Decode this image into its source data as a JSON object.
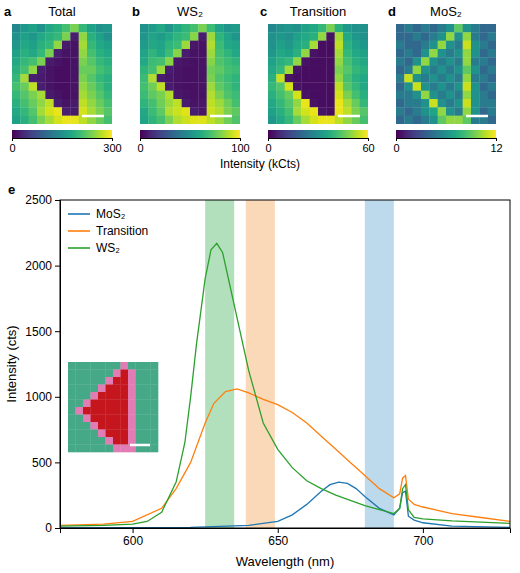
{
  "chart_data": [
    {
      "type": "heatmap",
      "panel": "a",
      "title": "Total",
      "colorbar": {
        "range": [
          0,
          300
        ],
        "ticks": [
          0,
          300
        ]
      },
      "cells": [
        [
          140,
          160,
          170,
          150,
          180,
          190,
          210,
          240,
          200,
          170,
          150,
          160
        ],
        [
          150,
          170,
          160,
          180,
          190,
          200,
          240,
          25,
          250,
          190,
          170,
          150
        ],
        [
          160,
          180,
          170,
          190,
          200,
          250,
          20,
          15,
          260,
          200,
          180,
          170
        ],
        [
          170,
          190,
          180,
          200,
          240,
          25,
          15,
          15,
          250,
          210,
          190,
          180
        ],
        [
          180,
          200,
          210,
          240,
          20,
          15,
          10,
          15,
          240,
          220,
          200,
          190
        ],
        [
          190,
          210,
          250,
          25,
          15,
          10,
          10,
          15,
          230,
          230,
          210,
          200
        ],
        [
          200,
          260,
          25,
          20,
          15,
          10,
          10,
          15,
          240,
          220,
          200,
          190
        ],
        [
          210,
          230,
          270,
          25,
          15,
          10,
          10,
          15,
          250,
          230,
          210,
          190
        ],
        [
          200,
          220,
          240,
          260,
          20,
          15,
          10,
          15,
          260,
          240,
          220,
          200
        ],
        [
          190,
          210,
          230,
          250,
          270,
          25,
          15,
          20,
          270,
          250,
          230,
          210
        ],
        [
          180,
          200,
          220,
          260,
          280,
          290,
          25,
          20,
          280,
          260,
          240,
          220
        ],
        [
          170,
          190,
          210,
          240,
          260,
          280,
          290,
          290,
          270,
          250,
          230,
          210
        ]
      ]
    },
    {
      "type": "heatmap",
      "panel": "b",
      "title": "WS₂",
      "colorbar": {
        "range": [
          0,
          100
        ],
        "ticks": [
          0,
          100
        ]
      },
      "cells": [
        [
          50,
          55,
          60,
          52,
          60,
          65,
          70,
          80,
          68,
          58,
          52,
          55
        ],
        [
          52,
          58,
          55,
          60,
          65,
          68,
          82,
          8,
          85,
          65,
          58,
          52
        ],
        [
          55,
          60,
          58,
          65,
          68,
          85,
          6,
          5,
          88,
          68,
          60,
          58
        ],
        [
          58,
          65,
          60,
          68,
          82,
          8,
          5,
          5,
          85,
          70,
          65,
          60
        ],
        [
          60,
          68,
          70,
          82,
          6,
          5,
          4,
          5,
          82,
          72,
          68,
          65
        ],
        [
          65,
          70,
          85,
          8,
          5,
          4,
          4,
          5,
          78,
          75,
          70,
          68
        ],
        [
          68,
          88,
          8,
          6,
          5,
          4,
          4,
          5,
          80,
          72,
          68,
          65
        ],
        [
          70,
          78,
          90,
          8,
          5,
          4,
          4,
          5,
          85,
          75,
          70,
          65
        ],
        [
          68,
          75,
          80,
          88,
          6,
          5,
          4,
          5,
          88,
          80,
          72,
          68
        ],
        [
          65,
          70,
          78,
          85,
          90,
          8,
          5,
          6,
          90,
          85,
          78,
          70
        ],
        [
          60,
          68,
          75,
          88,
          92,
          95,
          8,
          6,
          92,
          88,
          80,
          75
        ],
        [
          58,
          65,
          70,
          80,
          88,
          92,
          95,
          95,
          90,
          85,
          78,
          72
        ]
      ]
    },
    {
      "type": "heatmap",
      "panel": "c",
      "title": "Transition",
      "colorbar": {
        "range": [
          0,
          60
        ],
        "ticks": [
          0,
          60
        ]
      },
      "cells": [
        [
          28,
          30,
          32,
          30,
          34,
          36,
          40,
          48,
          38,
          32,
          30,
          30
        ],
        [
          30,
          32,
          30,
          34,
          36,
          38,
          50,
          3,
          52,
          36,
          32,
          30
        ],
        [
          30,
          34,
          32,
          36,
          38,
          52,
          2,
          2,
          54,
          38,
          34,
          32
        ],
        [
          32,
          36,
          34,
          38,
          50,
          3,
          2,
          2,
          52,
          40,
          36,
          34
        ],
        [
          34,
          38,
          40,
          50,
          3,
          2,
          2,
          2,
          50,
          42,
          38,
          36
        ],
        [
          36,
          40,
          52,
          3,
          2,
          2,
          2,
          2,
          48,
          44,
          40,
          38
        ],
        [
          38,
          55,
          3,
          2,
          2,
          2,
          2,
          2,
          50,
          42,
          38,
          36
        ],
        [
          40,
          44,
          56,
          3,
          2,
          2,
          2,
          2,
          54,
          44,
          40,
          36
        ],
        [
          38,
          42,
          46,
          56,
          3,
          2,
          2,
          2,
          56,
          48,
          42,
          38
        ],
        [
          36,
          40,
          44,
          50,
          58,
          3,
          2,
          2,
          58,
          52,
          46,
          40
        ],
        [
          34,
          38,
          42,
          52,
          56,
          58,
          3,
          2,
          58,
          54,
          48,
          44
        ],
        [
          32,
          36,
          40,
          46,
          52,
          56,
          58,
          58,
          54,
          50,
          46,
          42
        ]
      ]
    },
    {
      "type": "heatmap",
      "panel": "d",
      "title": "MoS₂",
      "colorbar": {
        "range": [
          0,
          12
        ],
        "ticks": [
          0,
          12
        ]
      },
      "cells": [
        [
          4,
          5,
          4,
          5,
          4,
          5,
          6,
          9,
          6,
          5,
          4,
          4
        ],
        [
          4,
          4,
          5,
          4,
          5,
          6,
          10,
          6,
          10,
          5,
          4,
          5
        ],
        [
          5,
          4,
          4,
          5,
          6,
          10,
          6,
          5,
          11,
          6,
          5,
          4
        ],
        [
          4,
          5,
          4,
          6,
          10,
          6,
          5,
          6,
          10,
          6,
          4,
          5
        ],
        [
          5,
          4,
          6,
          10,
          6,
          5,
          6,
          5,
          10,
          5,
          5,
          4
        ],
        [
          4,
          5,
          10,
          6,
          5,
          6,
          5,
          6,
          9,
          6,
          4,
          5
        ],
        [
          5,
          11,
          6,
          5,
          6,
          5,
          6,
          5,
          10,
          5,
          5,
          4
        ],
        [
          4,
          6,
          11,
          6,
          5,
          6,
          5,
          6,
          11,
          6,
          4,
          5
        ],
        [
          5,
          5,
          6,
          10,
          6,
          5,
          6,
          5,
          10,
          6,
          5,
          4
        ],
        [
          4,
          5,
          5,
          6,
          11,
          6,
          5,
          6,
          11,
          6,
          5,
          5
        ],
        [
          5,
          4,
          5,
          6,
          7,
          10,
          6,
          5,
          10,
          6,
          4,
          5
        ],
        [
          4,
          5,
          4,
          5,
          6,
          9,
          10,
          10,
          9,
          5,
          5,
          4
        ]
      ]
    },
    {
      "type": "line",
      "panel": "e",
      "xlabel": "Wavelength (nm)",
      "ylabel": "Intensity (cts)",
      "xlim": [
        575,
        730
      ],
      "ylim": [
        0,
        2500
      ],
      "xticks": [
        600,
        650,
        700
      ],
      "yticks": [
        0,
        500,
        1000,
        1500,
        2000,
        2500
      ],
      "legend": "upper left",
      "series": [
        {
          "name": "MoS₂",
          "color": "#1f77b4",
          "x": [
            575,
            620,
            640,
            650,
            655,
            660,
            665,
            668,
            671,
            674,
            677,
            680,
            685,
            690,
            692,
            693,
            694,
            695,
            697,
            700,
            710,
            730
          ],
          "values": [
            0,
            5,
            20,
            50,
            100,
            180,
            280,
            330,
            350,
            340,
            300,
            240,
            150,
            100,
            150,
            270,
            280,
            90,
            60,
            40,
            15,
            5
          ]
        },
        {
          "name": "Transition",
          "color": "#ff7f0e",
          "x": [
            575,
            590,
            600,
            610,
            615,
            620,
            625,
            628,
            632,
            636,
            640,
            645,
            650,
            655,
            660,
            665,
            670,
            675,
            680,
            685,
            690,
            692,
            693,
            694,
            695,
            697,
            700,
            710,
            720,
            730
          ],
          "values": [
            20,
            30,
            50,
            150,
            300,
            500,
            800,
            950,
            1040,
            1060,
            1030,
            980,
            940,
            880,
            800,
            700,
            600,
            500,
            400,
            300,
            230,
            260,
            380,
            400,
            220,
            180,
            160,
            110,
            80,
            50
          ]
        },
        {
          "name": "WS₂",
          "color": "#2ca02c",
          "x": [
            575,
            590,
            600,
            605,
            610,
            615,
            618,
            620,
            622,
            625,
            627,
            629,
            631,
            633,
            635,
            638,
            640,
            645,
            650,
            655,
            660,
            665,
            670,
            675,
            680,
            685,
            690,
            692,
            693,
            694,
            695,
            697,
            700,
            710,
            720,
            730
          ],
          "values": [
            15,
            20,
            30,
            50,
            120,
            350,
            650,
            1000,
            1400,
            1900,
            2120,
            2170,
            2100,
            1900,
            1700,
            1400,
            1200,
            800,
            600,
            460,
            360,
            300,
            250,
            210,
            170,
            140,
            110,
            150,
            300,
            330,
            140,
            80,
            70,
            55,
            45,
            35
          ]
        }
      ],
      "bands": [
        {
          "range": [
            625,
            635
          ],
          "color": "#a6dbb0"
        },
        {
          "range": [
            639,
            649
          ],
          "color": "#f9d2ad"
        },
        {
          "range": [
            680,
            690
          ],
          "color": "#b0d4e8"
        }
      ],
      "inset": {
        "colors": [
          "#45a987",
          "#e27cb4",
          "#c4161c"
        ],
        "cells": [
          [
            0,
            0,
            0,
            0,
            0,
            0,
            0,
            1,
            0,
            0,
            0,
            0
          ],
          [
            0,
            0,
            0,
            0,
            0,
            0,
            1,
            2,
            1,
            0,
            0,
            0
          ],
          [
            0,
            0,
            0,
            0,
            0,
            1,
            2,
            2,
            1,
            0,
            0,
            0
          ],
          [
            0,
            0,
            0,
            0,
            1,
            2,
            2,
            2,
            1,
            0,
            0,
            0
          ],
          [
            0,
            0,
            0,
            1,
            2,
            2,
            2,
            2,
            1,
            0,
            0,
            0
          ],
          [
            0,
            0,
            1,
            2,
            2,
            2,
            2,
            2,
            1,
            0,
            0,
            0
          ],
          [
            0,
            1,
            2,
            2,
            2,
            2,
            2,
            2,
            1,
            0,
            0,
            0
          ],
          [
            0,
            0,
            1,
            2,
            2,
            2,
            2,
            2,
            1,
            0,
            0,
            0
          ],
          [
            0,
            0,
            0,
            1,
            2,
            2,
            2,
            2,
            1,
            0,
            0,
            0
          ],
          [
            0,
            0,
            0,
            0,
            1,
            2,
            2,
            2,
            1,
            0,
            0,
            0
          ],
          [
            0,
            0,
            0,
            0,
            0,
            1,
            2,
            2,
            1,
            0,
            0,
            0
          ],
          [
            0,
            0,
            0,
            0,
            0,
            0,
            1,
            1,
            1,
            0,
            0,
            0
          ]
        ]
      }
    }
  ],
  "colorbar_title": "Intensity (kCts)"
}
